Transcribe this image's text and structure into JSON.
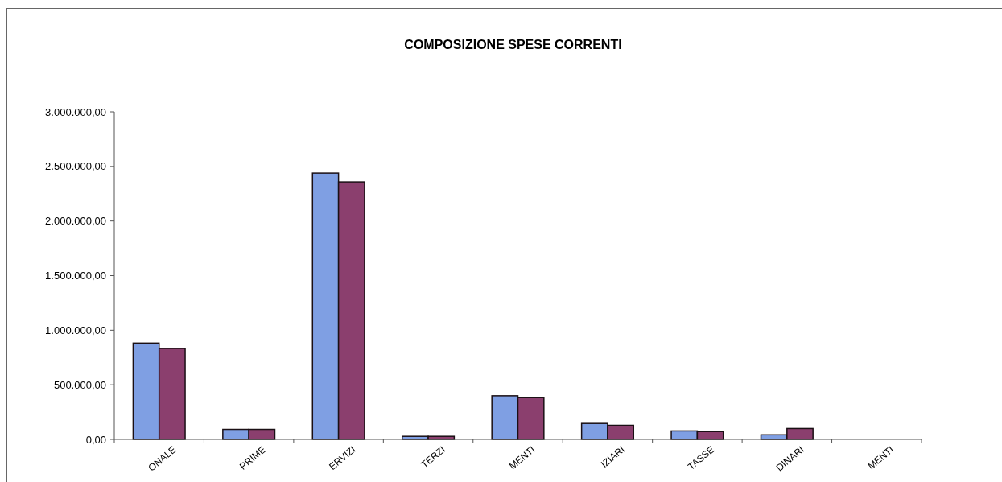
{
  "chart_data": {
    "type": "bar",
    "title": "COMPOSIZIONE SPESE CORRENTI",
    "categories": [
      "ONALE",
      "PRIME",
      "ERVIZI",
      "TERZI",
      "MENTI",
      "IZIARI",
      "TASSE",
      "DINARI",
      "MENTI"
    ],
    "series": [
      {
        "color": "#7f9fe3",
        "values": [
          882000,
          92000,
          2439000,
          28000,
          399000,
          146000,
          78000,
          42000,
          0
        ]
      },
      {
        "color": "#8b3f6e",
        "values": [
          833000,
          92000,
          2358000,
          28000,
          385000,
          129000,
          72000,
          100000,
          0
        ]
      }
    ],
    "ylim": [
      0,
      3000000
    ],
    "yticks": [
      {
        "value": 0,
        "label": "0,00"
      },
      {
        "value": 500000,
        "label": "500.000,00"
      },
      {
        "value": 1000000,
        "label": "1.000.000,00"
      },
      {
        "value": 1500000,
        "label": "1.500.000,00"
      },
      {
        "value": 2000000,
        "label": "2.000.000,00"
      },
      {
        "value": 2500000,
        "label": "2.500.000,00"
      },
      {
        "value": 3000000,
        "label": "3.000.000,00"
      }
    ],
    "grid": false
  }
}
